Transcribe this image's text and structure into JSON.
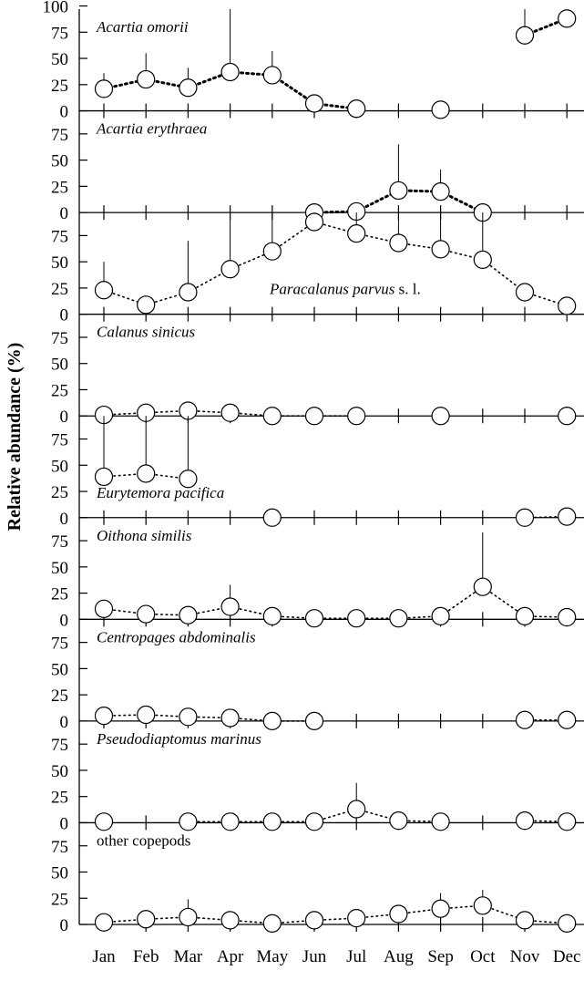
{
  "chart_data": {
    "type": "line",
    "ylabel": "Relative abundance (%)",
    "xlabel": "",
    "categories": [
      "Jan",
      "Feb",
      "Mar",
      "Apr",
      "May",
      "Jun",
      "Jul",
      "Aug",
      "Sep",
      "Oct",
      "Nov",
      "Dec"
    ],
    "legend": "none",
    "grid": false,
    "panels": [
      {
        "name": "Acartia omorii",
        "italic": "Acartia omorii",
        "suffix": "",
        "label_position": "top-left",
        "ylim": [
          0,
          100
        ],
        "yticks": [
          0,
          25,
          50,
          75,
          100
        ],
        "values": [
          21,
          30,
          22,
          37,
          34,
          7,
          2,
          null,
          1,
          null,
          72,
          88
        ],
        "err": [
          36,
          55,
          41,
          100,
          57,
          null,
          null,
          null,
          null,
          null,
          100,
          null
        ],
        "line": "thick-dotted"
      },
      {
        "name": "Acartia erythraea",
        "italic": "Acartia erythraea",
        "suffix": "",
        "label_position": "top-left",
        "ylim": [
          0,
          100
        ],
        "yticks": [
          0,
          25,
          50,
          75
        ],
        "values": [
          null,
          null,
          null,
          null,
          null,
          0,
          1,
          21,
          20,
          0,
          null,
          null
        ],
        "err": [
          null,
          null,
          null,
          null,
          null,
          null,
          null,
          65,
          41,
          null,
          null,
          null
        ],
        "line": "thick-dotted"
      },
      {
        "name": "Paracalanus parvus s. l.",
        "italic": "Paracalanus parvus",
        "suffix": " s. l.",
        "label_position": "bottom-right",
        "ylim": [
          0,
          100
        ],
        "yticks": [
          0,
          25,
          50,
          75
        ],
        "values": [
          23,
          9,
          21,
          43,
          60,
          88,
          77,
          68,
          62,
          52,
          21,
          8
        ],
        "err": [
          50,
          null,
          70,
          100,
          100,
          100,
          100,
          100,
          100,
          100,
          null,
          null
        ],
        "line": "dotted"
      },
      {
        "name": "Calanus sinicus",
        "italic": "Calanus sinicus",
        "suffix": "",
        "label_position": "top-left",
        "ylim": [
          0,
          100
        ],
        "yticks": [
          0,
          25,
          50,
          75
        ],
        "values": [
          1,
          3,
          5,
          3,
          0,
          0,
          0,
          null,
          0,
          null,
          null,
          0
        ],
        "err": [
          null,
          null,
          null,
          null,
          null,
          null,
          null,
          null,
          null,
          null,
          null,
          null
        ],
        "line": "dotted"
      },
      {
        "name": "Eurytemora pacifica",
        "italic": "Eurytemora pacifica",
        "suffix": "",
        "label_position": "bottom-left",
        "ylim": [
          0,
          100
        ],
        "yticks": [
          0,
          25,
          50,
          75
        ],
        "values": [
          39,
          42,
          37,
          null,
          0,
          null,
          null,
          null,
          null,
          null,
          0,
          1
        ],
        "err": [
          100,
          100,
          100,
          null,
          null,
          null,
          null,
          null,
          null,
          null,
          null,
          null
        ],
        "line": "dotted"
      },
      {
        "name": "Oithona similis",
        "italic": "Oithona similis",
        "suffix": "",
        "label_position": "top-left",
        "ylim": [
          0,
          100
        ],
        "yticks": [
          0,
          25,
          50,
          75
        ],
        "values": [
          10,
          5,
          4,
          12,
          3,
          1,
          1,
          1,
          3,
          31,
          3,
          2
        ],
        "err": [
          null,
          null,
          null,
          33,
          null,
          null,
          null,
          null,
          null,
          83,
          null,
          null
        ],
        "line": "dotted"
      },
      {
        "name": "Centropages abdominalis",
        "italic": "Centropages abdominalis",
        "suffix": "",
        "label_position": "top-left",
        "ylim": [
          0,
          100
        ],
        "yticks": [
          0,
          25,
          50,
          75
        ],
        "values": [
          5,
          6,
          4,
          3,
          0,
          0,
          null,
          null,
          null,
          null,
          1,
          1
        ],
        "err": [
          null,
          null,
          null,
          null,
          null,
          null,
          null,
          null,
          null,
          null,
          null,
          null
        ],
        "line": "dotted"
      },
      {
        "name": "Pseudodiaptomus marinus",
        "italic": "Pseudodiaptomus marinus",
        "suffix": "",
        "label_position": "top-left",
        "ylim": [
          0,
          100
        ],
        "yticks": [
          0,
          25,
          50,
          75
        ],
        "values": [
          1,
          null,
          1,
          1,
          1,
          1,
          13,
          2,
          1,
          null,
          2,
          1
        ],
        "err": [
          null,
          null,
          null,
          null,
          null,
          null,
          38,
          null,
          null,
          null,
          null,
          null
        ],
        "line": "dotted"
      },
      {
        "name": "other copepods",
        "italic": "",
        "suffix": "other copepods",
        "label_position": "top-left",
        "ylim": [
          0,
          100
        ],
        "yticks": [
          0,
          25,
          50,
          75
        ],
        "values": [
          2,
          5,
          7,
          4,
          1,
          4,
          6,
          10,
          15,
          18,
          4,
          1
        ],
        "err": [
          null,
          null,
          24,
          null,
          null,
          null,
          null,
          null,
          30,
          33,
          null,
          null
        ],
        "line": "dotted"
      }
    ]
  }
}
